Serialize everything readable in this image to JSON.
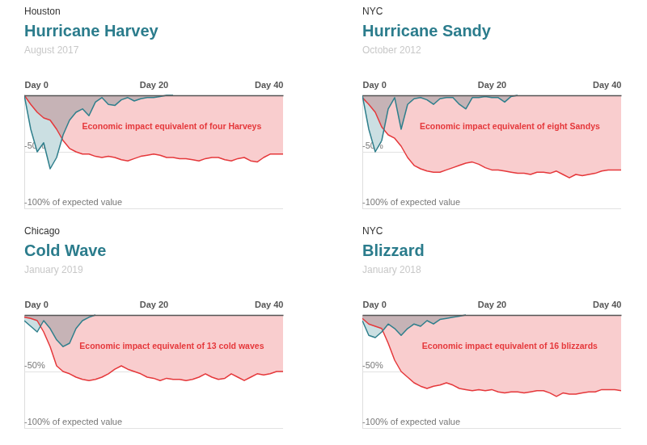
{
  "chart_data": [
    {
      "type": "area",
      "city": "Houston",
      "title": "Hurricane Harvey",
      "subtitle": "August 2017",
      "annotation": "Economic impact equivalent of four Harveys",
      "x": [
        0,
        1,
        2,
        3,
        4,
        5,
        6,
        7,
        8,
        9,
        10,
        11,
        12,
        13,
        14,
        15,
        16,
        17,
        18,
        19,
        20,
        21,
        22,
        23,
        24,
        25,
        26,
        27,
        28,
        29,
        30,
        31,
        32,
        33,
        34,
        35,
        36,
        37,
        38,
        39,
        40
      ],
      "xlim": [
        0,
        40
      ],
      "xticks": [
        {
          "value": 0,
          "label": "Day 0"
        },
        {
          "value": 20,
          "label": "Day 20"
        },
        {
          "value": 40,
          "label": "Day 40"
        }
      ],
      "ylim": [
        -100,
        0
      ],
      "yticks": [
        {
          "value": -50,
          "label": "-50%"
        },
        {
          "value": -100,
          "label": "-100% of expected value"
        }
      ],
      "series": [
        {
          "color": "#2f7f8c",
          "values": [
            0,
            -30,
            -50,
            -42,
            -65,
            -55,
            -35,
            -22,
            -15,
            -12,
            -18,
            -6,
            -2,
            -8,
            -9,
            -4,
            -2,
            -5,
            -3,
            -2,
            -2,
            -1,
            0,
            0,
            null,
            null,
            null,
            null,
            null,
            null,
            null,
            null,
            null,
            null,
            null,
            null,
            null,
            null,
            null,
            null,
            null
          ]
        },
        {
          "color": "#e5383b",
          "values": [
            0,
            -8,
            -15,
            -20,
            -22,
            -30,
            -40,
            -47,
            -50,
            -52,
            -52,
            -54,
            -55,
            -54,
            -55,
            -57,
            -58,
            -56,
            -54,
            -53,
            -52,
            -53,
            -55,
            -55,
            -56,
            -56,
            -57,
            -58,
            -56,
            -55,
            -55,
            -57,
            -58,
            -56,
            -55,
            -58,
            -59,
            -55,
            -52,
            -52,
            -52
          ]
        }
      ]
    },
    {
      "type": "area",
      "city": "NYC",
      "title": "Hurricane Sandy",
      "subtitle": "October 2012",
      "annotation": "Economic impact equivalent of eight Sandys",
      "x": [
        0,
        1,
        2,
        3,
        4,
        5,
        6,
        7,
        8,
        9,
        10,
        11,
        12,
        13,
        14,
        15,
        16,
        17,
        18,
        19,
        20,
        21,
        22,
        23,
        24,
        25,
        26,
        27,
        28,
        29,
        30,
        31,
        32,
        33,
        34,
        35,
        36,
        37,
        38,
        39,
        40
      ],
      "xlim": [
        0,
        40
      ],
      "xticks": [
        {
          "value": 0,
          "label": "Day 0"
        },
        {
          "value": 20,
          "label": "Day 20"
        },
        {
          "value": 40,
          "label": "Day 40"
        }
      ],
      "ylim": [
        -100,
        0
      ],
      "yticks": [
        {
          "value": -50,
          "label": "-50%"
        },
        {
          "value": -100,
          "label": "-100% of expected value"
        }
      ],
      "series": [
        {
          "color": "#2f7f8c",
          "values": [
            0,
            -30,
            -50,
            -40,
            -12,
            -2,
            -30,
            -8,
            -3,
            -2,
            -4,
            -8,
            -3,
            -2,
            -2,
            -8,
            -12,
            -2,
            -2,
            -1,
            -2,
            -2,
            -6,
            -1,
            0,
            null,
            null,
            null,
            null,
            null,
            null,
            null,
            null,
            null,
            null,
            null,
            null,
            null,
            null,
            null,
            null
          ]
        },
        {
          "color": "#e5383b",
          "values": [
            -2,
            -8,
            -15,
            -28,
            -35,
            -38,
            -45,
            -55,
            -62,
            -65,
            -67,
            -68,
            -68,
            -66,
            -64,
            -62,
            -60,
            -59,
            -61,
            -64,
            -66,
            -66,
            -67,
            -68,
            -69,
            -69,
            -70,
            -68,
            -68,
            -69,
            -67,
            -70,
            -73,
            -70,
            -71,
            -70,
            -69,
            -67,
            -66,
            -66,
            -66
          ]
        }
      ]
    },
    {
      "type": "area",
      "city": "Chicago",
      "title": "Cold Wave",
      "subtitle": "January 2019",
      "annotation": "Economic impact equivalent of 13 cold waves",
      "x": [
        0,
        1,
        2,
        3,
        4,
        5,
        6,
        7,
        8,
        9,
        10,
        11,
        12,
        13,
        14,
        15,
        16,
        17,
        18,
        19,
        20,
        21,
        22,
        23,
        24,
        25,
        26,
        27,
        28,
        29,
        30,
        31,
        32,
        33,
        34,
        35,
        36,
        37,
        38,
        39,
        40
      ],
      "xlim": [
        0,
        40
      ],
      "xticks": [
        {
          "value": 0,
          "label": "Day 0"
        },
        {
          "value": 20,
          "label": "Day 20"
        },
        {
          "value": 40,
          "label": "Day 40"
        }
      ],
      "ylim": [
        -100,
        0
      ],
      "yticks": [
        {
          "value": -50,
          "label": "-50%"
        },
        {
          "value": -100,
          "label": "-100% of expected value"
        }
      ],
      "series": [
        {
          "color": "#2f7f8c",
          "values": [
            -5,
            -10,
            -15,
            -5,
            -12,
            -22,
            -28,
            -25,
            -12,
            -5,
            -2,
            0,
            null,
            null,
            null,
            null,
            null,
            null,
            null,
            null,
            null,
            null,
            null,
            null,
            null,
            null,
            null,
            null,
            null,
            null,
            null,
            null,
            null,
            null,
            null,
            null,
            null,
            null,
            null,
            null,
            null
          ]
        },
        {
          "color": "#e5383b",
          "values": [
            -2,
            -3,
            -5,
            -15,
            -28,
            -45,
            -50,
            -52,
            -55,
            -57,
            -58,
            -57,
            -55,
            -52,
            -48,
            -45,
            -48,
            -50,
            -52,
            -55,
            -56,
            -58,
            -56,
            -57,
            -57,
            -58,
            -57,
            -55,
            -52,
            -55,
            -57,
            -56,
            -52,
            -55,
            -58,
            -55,
            -52,
            -53,
            -52,
            -50,
            -50
          ]
        }
      ]
    },
    {
      "type": "area",
      "city": "NYC",
      "title": "Blizzard",
      "subtitle": "January 2018",
      "annotation": "Economic impact equivalent of 16 blizzards",
      "x": [
        0,
        1,
        2,
        3,
        4,
        5,
        6,
        7,
        8,
        9,
        10,
        11,
        12,
        13,
        14,
        15,
        16,
        17,
        18,
        19,
        20,
        21,
        22,
        23,
        24,
        25,
        26,
        27,
        28,
        29,
        30,
        31,
        32,
        33,
        34,
        35,
        36,
        37,
        38,
        39,
        40
      ],
      "xlim": [
        0,
        40
      ],
      "xticks": [
        {
          "value": 0,
          "label": "Day 0"
        },
        {
          "value": 20,
          "label": "Day 20"
        },
        {
          "value": 40,
          "label": "Day 40"
        }
      ],
      "ylim": [
        -100,
        0
      ],
      "yticks": [
        {
          "value": -50,
          "label": "-50%"
        },
        {
          "value": -100,
          "label": "-100% of expected value"
        }
      ],
      "series": [
        {
          "color": "#2f7f8c",
          "values": [
            -5,
            -18,
            -20,
            -15,
            -8,
            -12,
            -18,
            -12,
            -8,
            -10,
            -5,
            -8,
            -4,
            -3,
            -2,
            -1,
            0,
            null,
            null,
            null,
            null,
            null,
            null,
            null,
            null,
            null,
            null,
            null,
            null,
            null,
            null,
            null,
            null,
            null,
            null,
            null,
            null,
            null,
            null,
            null,
            null
          ]
        },
        {
          "color": "#e5383b",
          "values": [
            -3,
            -8,
            -10,
            -12,
            -25,
            -40,
            -50,
            -55,
            -60,
            -63,
            -65,
            -63,
            -62,
            -60,
            -62,
            -65,
            -66,
            -67,
            -66,
            -67,
            -66,
            -68,
            -69,
            -68,
            -68,
            -69,
            -68,
            -67,
            -67,
            -69,
            -72,
            -69,
            -70,
            -70,
            -69,
            -68,
            -68,
            -66,
            -66,
            -66,
            -67
          ]
        }
      ]
    }
  ]
}
